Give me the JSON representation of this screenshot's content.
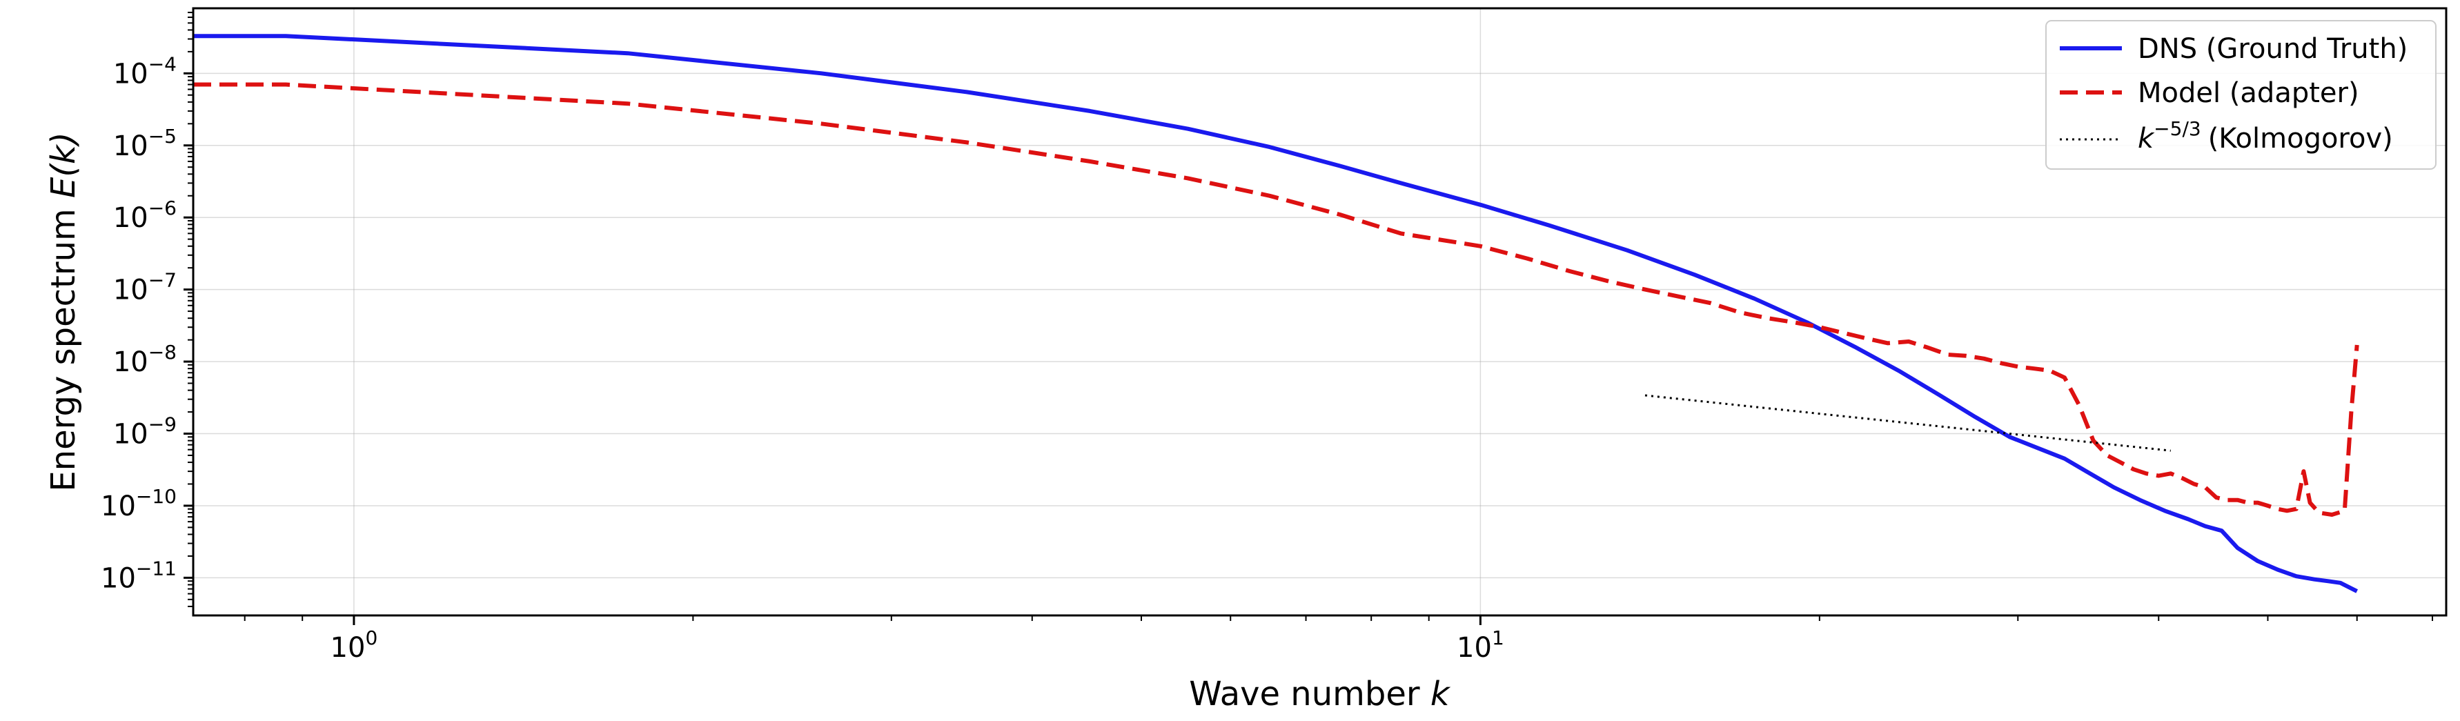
{
  "chart_data": {
    "type": "line",
    "title": "",
    "xlabel": "Wave number",
    "xlabel_var": "k",
    "ylabel": "Energy spectrum",
    "ylabel_var": "E(k)",
    "xscale": "log",
    "yscale": "log",
    "xlim": [
      0.72,
      72
    ],
    "ylim": [
      3e-12,
      0.0008
    ],
    "grid": true,
    "legend_position": "top-right",
    "x_major_ticks": [
      {
        "value": 1,
        "base": "10",
        "exp": "0"
      },
      {
        "value": 10,
        "base": "10",
        "exp": "1"
      }
    ],
    "y_major_ticks": [
      {
        "value": 1e-11,
        "base": "10",
        "exp": "−11"
      },
      {
        "value": 1e-10,
        "base": "10",
        "exp": "−10"
      },
      {
        "value": 1e-09,
        "base": "10",
        "exp": "−9"
      },
      {
        "value": 1e-08,
        "base": "10",
        "exp": "−8"
      },
      {
        "value": 1e-07,
        "base": "10",
        "exp": "−7"
      },
      {
        "value": 1e-06,
        "base": "10",
        "exp": "−6"
      },
      {
        "value": 1e-05,
        "base": "10",
        "exp": "−5"
      },
      {
        "value": 0.0001,
        "base": "10",
        "exp": "−4"
      }
    ],
    "series": [
      {
        "name": "DNS (Ground Truth)",
        "color": "#1a1aee",
        "style": "solid",
        "x": [
          0.72,
          0.87,
          1.75,
          2.6,
          3.5,
          4.5,
          5.5,
          6.5,
          7.5,
          8.5,
          10,
          11.5,
          13.5,
          15.5,
          17.5,
          19.5,
          21.5,
          23.5,
          25.5,
          27.5,
          29.5,
          31.5,
          33,
          34.5,
          36.5,
          38.5,
          40.5,
          42.5,
          44,
          45.5,
          47,
          49,
          51,
          53,
          55,
          56.5,
          58,
          60
        ],
        "y": [
          0.00033,
          0.00033,
          0.00019,
          0.0001,
          5.5e-05,
          3e-05,
          1.7e-05,
          9.5e-06,
          5.2e-06,
          3e-06,
          1.5e-06,
          7.8e-07,
          3.5e-07,
          1.6e-07,
          7.5e-08,
          3.5e-08,
          1.6e-08,
          7.5e-09,
          3.5e-09,
          1.7e-09,
          9e-10,
          6e-10,
          4.5e-10,
          3e-10,
          1.8e-10,
          1.2e-10,
          8.5e-11,
          6.5e-11,
          5.2e-11,
          4.5e-11,
          2.6e-11,
          1.7e-11,
          1.3e-11,
          1.05e-11,
          9.5e-12,
          9e-12,
          8.5e-12,
          6.5e-12
        ]
      },
      {
        "name": "Model (adapter)",
        "color": "#dd1111",
        "style": "dashed",
        "x": [
          0.72,
          0.87,
          1.75,
          2.6,
          3.5,
          4.5,
          5.5,
          6.5,
          7.5,
          8.5,
          10,
          11,
          12,
          13,
          14,
          15,
          16,
          17,
          18,
          19,
          20,
          21,
          22,
          23,
          24,
          25,
          26,
          27,
          28,
          29,
          30,
          31,
          32,
          33,
          34,
          35,
          36,
          37,
          38,
          39,
          40,
          41,
          42,
          43,
          44,
          45,
          46,
          47,
          48,
          49,
          50,
          51,
          52,
          53,
          53.8,
          54.5,
          55.5,
          57,
          58.5,
          59.3,
          60
        ],
        "y": [
          7e-05,
          7e-05,
          3.8e-05,
          2e-05,
          1.1e-05,
          6e-06,
          3.5e-06,
          2e-06,
          1.1e-06,
          6e-07,
          4e-07,
          2.7e-07,
          1.8e-07,
          1.3e-07,
          1e-07,
          8e-08,
          6.5e-08,
          4.8e-08,
          4e-08,
          3.5e-08,
          3e-08,
          2.5e-08,
          2.1e-08,
          1.8e-08,
          1.9e-08,
          1.55e-08,
          1.25e-08,
          1.2e-08,
          1.1e-08,
          9.5e-09,
          8.5e-09,
          8e-09,
          7.5e-09,
          6e-09,
          2.5e-09,
          8e-10,
          5e-10,
          4e-10,
          3.2e-10,
          2.8e-10,
          2.6e-10,
          2.8e-10,
          2.4e-10,
          2e-10,
          1.8e-10,
          1.3e-10,
          1.2e-10,
          1.2e-10,
          1.1e-10,
          1.1e-10,
          1e-10,
          9e-11,
          8.5e-11,
          9e-11,
          3e-10,
          1.1e-10,
          8e-11,
          7.5e-11,
          8.5e-11,
          2e-09,
          1.7e-08
        ]
      },
      {
        "name": "(Kolmogorov)",
        "legend_math_base": "k",
        "legend_math_exp": "−5/3",
        "color": "#000000",
        "style": "dotted",
        "x": [
          14,
          41
        ],
        "y": [
          3.4e-09,
          5.8e-10
        ]
      }
    ]
  }
}
